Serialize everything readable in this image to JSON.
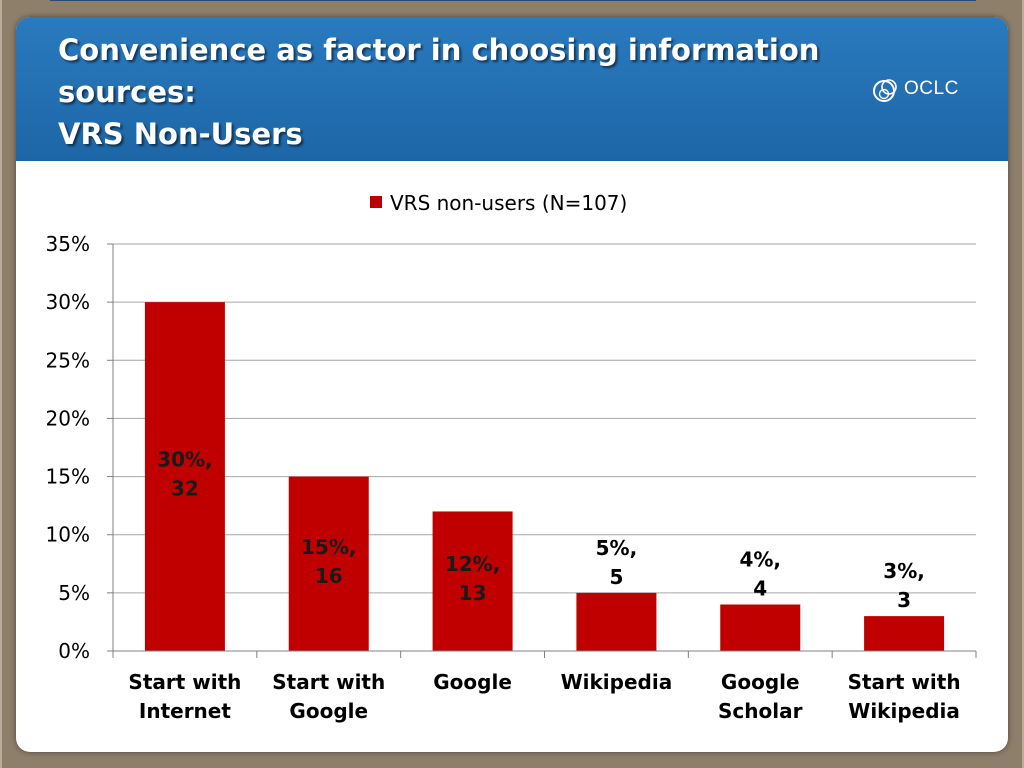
{
  "slide": {
    "title_lines": [
      "Convenience as factor in choosing information",
      "sources:",
      "VRS Non-Users"
    ],
    "logo_text": "OCLC"
  },
  "colors": {
    "header_blue": "#1f6aab",
    "bar": "#c00000",
    "gridline": "#a6a6a6"
  },
  "chart_data": {
    "type": "bar",
    "categories": [
      [
        "Start with",
        "Internet"
      ],
      [
        "Start with",
        "Google"
      ],
      [
        "Google"
      ],
      [
        "Wikipedia"
      ],
      [
        "Google",
        "Scholar"
      ],
      [
        "Start with",
        "Wikipedia"
      ]
    ],
    "series": [
      {
        "name": "VRS non-users (N=107)",
        "values": [
          30,
          15,
          12,
          5,
          4,
          3
        ],
        "labels": [
          [
            "30%,",
            "32"
          ],
          [
            "15%,",
            "16"
          ],
          [
            "12%,",
            "13"
          ],
          [
            "5%,",
            "5"
          ],
          [
            "4%,",
            "4"
          ],
          [
            "3%,",
            "3"
          ]
        ]
      }
    ],
    "ylim": [
      0,
      35
    ],
    "yticks": [
      "0%",
      "5%",
      "10%",
      "15%",
      "20%",
      "25%",
      "30%",
      "35%"
    ],
    "ytick_values": [
      0,
      5,
      10,
      15,
      20,
      25,
      30,
      35
    ],
    "grid": true,
    "legend_position": "top"
  }
}
